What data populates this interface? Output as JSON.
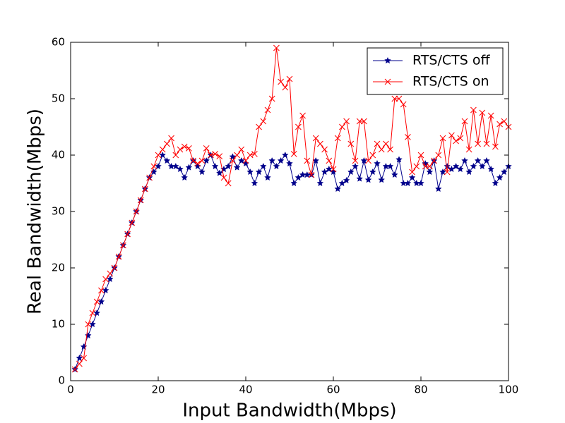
{
  "chart_data": {
    "type": "line",
    "xlabel": "Input Bandwidth(Mbps)",
    "ylabel": "Real Bandwidth(Mbps)",
    "x": [
      1,
      2,
      3,
      4,
      5,
      6,
      7,
      8,
      9,
      10,
      11,
      12,
      13,
      14,
      15,
      16,
      17,
      18,
      19,
      20,
      21,
      22,
      23,
      24,
      25,
      26,
      27,
      28,
      29,
      30,
      31,
      32,
      33,
      34,
      35,
      36,
      37,
      38,
      39,
      40,
      41,
      42,
      43,
      44,
      45,
      46,
      47,
      48,
      49,
      50,
      51,
      52,
      53,
      54,
      55,
      56,
      57,
      58,
      59,
      60,
      61,
      62,
      63,
      64,
      65,
      66,
      67,
      68,
      69,
      70,
      71,
      72,
      73,
      74,
      75,
      76,
      77,
      78,
      79,
      80,
      81,
      82,
      83,
      84,
      85,
      86,
      87,
      88,
      89,
      90,
      91,
      92,
      93,
      94,
      95,
      96,
      97,
      98,
      99,
      100
    ],
    "series": [
      {
        "name": "RTS/CTS off",
        "color": "#00008b",
        "marker": "star",
        "values": [
          2,
          4,
          6,
          8,
          10,
          12,
          14,
          16,
          18,
          20,
          22,
          24,
          26,
          28,
          30,
          32,
          34,
          36,
          37,
          38,
          40,
          39,
          38,
          38,
          37.5,
          36,
          37.8,
          39,
          38,
          37,
          39,
          40,
          38,
          36.8,
          37.5,
          38,
          39.7,
          37.8,
          39,
          38.5,
          37,
          35,
          37,
          38,
          36,
          39,
          38,
          39,
          40,
          38.5,
          35,
          36,
          36.5,
          36.5,
          36.5,
          39,
          35,
          37,
          37.5,
          37,
          34,
          35,
          35.5,
          37,
          38,
          35.8,
          39,
          35.6,
          37,
          38.5,
          35.6,
          38,
          38,
          36.5,
          39.2,
          35,
          35,
          36,
          35,
          35,
          38.5,
          37,
          39,
          34,
          37,
          38,
          37.5,
          38,
          37.5,
          39,
          37,
          38,
          39,
          38,
          39,
          37.5,
          35,
          36,
          37,
          38
        ]
      },
      {
        "name": "RTS/CTS on",
        "color": "#ff0000",
        "marker": "x",
        "values": [
          2,
          3,
          4,
          10,
          12,
          14,
          16,
          18,
          19,
          20,
          22,
          24,
          26,
          28,
          30,
          32,
          34,
          36,
          38,
          40,
          41,
          42,
          43,
          40,
          41,
          41.5,
          41.2,
          39,
          38.5,
          39,
          41.2,
          40,
          40.2,
          39.8,
          36,
          35,
          39,
          40,
          41,
          39,
          40,
          40.2,
          45,
          46,
          48,
          50,
          59,
          53,
          52,
          53.5,
          40.2,
          45,
          47,
          39,
          36.5,
          43,
          42,
          41,
          39,
          37.5,
          43,
          45,
          46,
          42,
          39,
          46,
          46,
          39,
          40,
          42,
          41,
          42,
          41,
          50,
          50,
          49,
          43.2,
          37,
          38,
          40,
          38,
          38,
          39,
          40,
          43,
          37,
          43.5,
          42.5,
          43,
          46,
          41,
          48,
          42,
          47.5,
          42,
          47,
          41.5,
          45.5,
          46,
          45
        ]
      }
    ],
    "xlim": [
      0,
      100
    ],
    "ylim": [
      0,
      60
    ],
    "xticks": [
      0,
      20,
      40,
      60,
      80,
      100
    ],
    "yticks": [
      0,
      10,
      20,
      30,
      40,
      50,
      60
    ],
    "legend": "upper right"
  }
}
